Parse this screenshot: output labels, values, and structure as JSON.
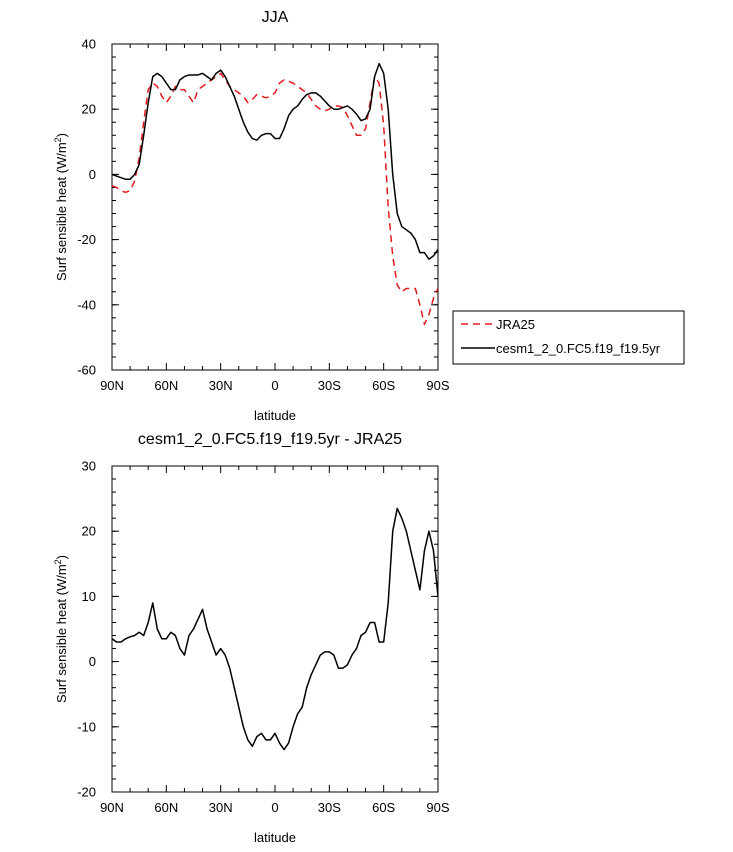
{
  "chart_data": [
    {
      "type": "line",
      "title": "JJA",
      "xlabel": "latitude",
      "ylabel": "Surf sensible heat (W/m²)",
      "ylabel_main": "Surf sensible heat (W/m",
      "ylabel_sup": "2",
      "ylabel_close": ")",
      "xlim": [
        90,
        -90
      ],
      "ylim": [
        -60,
        40
      ],
      "x_ticks": [
        90,
        60,
        30,
        0,
        -30,
        -60,
        -90
      ],
      "x_tick_labels": [
        "90N",
        "60N",
        "30N",
        "0",
        "30S",
        "60S",
        "90S"
      ],
      "y_ticks": [
        -60,
        -40,
        -20,
        0,
        20,
        40
      ],
      "y_tick_labels": [
        "-60",
        "-40",
        "-20",
        "0",
        "20",
        "40"
      ],
      "legend": {
        "position": "right",
        "entries": [
          "JRA25",
          "cesm1_2_0.FC5.f19_f19.5yr"
        ]
      },
      "series": [
        {
          "name": "JRA25",
          "color": "#e31a1c",
          "dash": "dashed",
          "x": [
            90,
            87.5,
            85,
            82.5,
            80,
            77.5,
            75,
            72.5,
            70,
            67.5,
            65,
            62.5,
            60,
            57.5,
            55,
            52.5,
            50,
            47.5,
            45,
            42.5,
            40,
            37.5,
            35,
            32.5,
            30,
            27.5,
            25,
            22.5,
            20,
            17.5,
            15,
            12.5,
            10,
            7.5,
            5,
            2.5,
            0,
            -2.5,
            -5,
            -7.5,
            -10,
            -12.5,
            -15,
            -17.5,
            -20,
            -22.5,
            -25,
            -27.5,
            -30,
            -32.5,
            -35,
            -37.5,
            -40,
            -42.5,
            -45,
            -47.5,
            -50,
            -52.5,
            -55,
            -57.5,
            -60,
            -62.5,
            -65,
            -67.5,
            -70,
            -72.5,
            -75,
            -77.5,
            -80,
            -82.5,
            -85,
            -87.5,
            -90
          ],
          "values": [
            -3.5,
            -4,
            -5,
            -5.5,
            -5,
            -2,
            5,
            16,
            26,
            28,
            27,
            24,
            22,
            24,
            27,
            26,
            26,
            24,
            22,
            26,
            27,
            28,
            29,
            30,
            31,
            29,
            27,
            26,
            25,
            24,
            22,
            23,
            24.5,
            24,
            23.5,
            24,
            25,
            28,
            29,
            28.5,
            28,
            27,
            26,
            25,
            23,
            21,
            20,
            19.5,
            20,
            21,
            21,
            20.5,
            18,
            15,
            12,
            12,
            14,
            22,
            30,
            28,
            15,
            -10,
            -25,
            -34,
            -36,
            -35,
            -35,
            -35,
            -40,
            -46,
            -43,
            -38,
            -35
          ]
        },
        {
          "name": "cesm1_2_0.FC5.f19_f19.5yr",
          "color": "#000000",
          "dash": "solid",
          "x": [
            90,
            87.5,
            85,
            82.5,
            80,
            77.5,
            75,
            72.5,
            70,
            67.5,
            65,
            62.5,
            60,
            57.5,
            55,
            52.5,
            50,
            47.5,
            45,
            42.5,
            40,
            37.5,
            35,
            32.5,
            30,
            27.5,
            25,
            22.5,
            20,
            17.5,
            15,
            12.5,
            10,
            7.5,
            5,
            2.5,
            0,
            -2.5,
            -5,
            -7.5,
            -10,
            -12.5,
            -15,
            -17.5,
            -20,
            -22.5,
            -25,
            -27.5,
            -30,
            -32.5,
            -35,
            -37.5,
            -40,
            -42.5,
            -45,
            -47.5,
            -50,
            -52.5,
            -55,
            -57.5,
            -60,
            -62.5,
            -65,
            -67.5,
            -70,
            -72.5,
            -75,
            -77.5,
            -80,
            -82.5,
            -85,
            -87.5,
            -90
          ],
          "values": [
            0,
            -0.5,
            -1,
            -1.5,
            -1.5,
            0,
            3,
            12,
            22,
            30,
            31,
            30,
            28,
            26,
            26,
            29,
            30,
            30.5,
            30.5,
            30.5,
            31,
            30,
            29,
            31,
            32,
            30,
            27,
            24,
            20,
            16,
            13,
            11,
            10.5,
            12,
            12.5,
            12.5,
            11,
            11,
            14,
            18,
            20,
            21,
            23,
            24.5,
            25,
            25,
            24,
            22.5,
            21,
            20,
            20,
            20.5,
            21,
            20,
            18.5,
            16.5,
            17,
            20,
            30,
            34,
            31,
            20,
            0,
            -12,
            -16,
            -17,
            -18,
            -20,
            -24,
            -24,
            -26,
            -25,
            -23
          ]
        }
      ]
    },
    {
      "type": "line",
      "title": "cesm1_2_0.FC5.f19_f19.5yr - JRA25",
      "xlabel": "latitude",
      "ylabel": "Surf sensible heat (W/m²)",
      "ylabel_main": "Surf sensible heat (W/m",
      "ylabel_sup": "2",
      "ylabel_close": ")",
      "xlim": [
        90,
        -90
      ],
      "ylim": [
        -20,
        30
      ],
      "x_ticks": [
        90,
        60,
        30,
        0,
        -30,
        -60,
        -90
      ],
      "x_tick_labels": [
        "90N",
        "60N",
        "30N",
        "0",
        "30S",
        "60S",
        "90S"
      ],
      "y_ticks": [
        -20,
        -10,
        0,
        10,
        20,
        30
      ],
      "y_tick_labels": [
        "-20",
        "-10",
        "0",
        "10",
        "20",
        "30"
      ],
      "series": [
        {
          "color": "#000000",
          "dash": "solid",
          "x": [
            90,
            87.5,
            85,
            82.5,
            80,
            77.5,
            75,
            72.5,
            70,
            67.5,
            65,
            62.5,
            60,
            57.5,
            55,
            52.5,
            50,
            47.5,
            45,
            42.5,
            40,
            37.5,
            35,
            32.5,
            30,
            27.5,
            25,
            22.5,
            20,
            17.5,
            15,
            12.5,
            10,
            7.5,
            5,
            2.5,
            0,
            -2.5,
            -5,
            -7.5,
            -10,
            -12.5,
            -15,
            -17.5,
            -20,
            -22.5,
            -25,
            -27.5,
            -30,
            -32.5,
            -35,
            -37.5,
            -40,
            -42.5,
            -45,
            -47.5,
            -50,
            -52.5,
            -55,
            -57.5,
            -60,
            -62.5,
            -65,
            -67.5,
            -70,
            -72.5,
            -75,
            -77.5,
            -80,
            -82.5,
            -85,
            -87.5,
            -90
          ],
          "values": [
            3.5,
            3,
            3,
            3.5,
            3.8,
            4,
            4.5,
            4,
            6,
            9,
            5,
            3.5,
            3.5,
            4.5,
            4,
            2,
            1,
            4,
            5,
            6.5,
            8,
            5,
            3,
            1,
            2,
            1,
            -1,
            -4,
            -7,
            -10,
            -12,
            -13,
            -11.5,
            -11,
            -12,
            -12,
            -11,
            -12.5,
            -13.5,
            -12.5,
            -10,
            -8,
            -7,
            -4,
            -2,
            -0.5,
            1,
            1.5,
            1.5,
            1,
            -1,
            -1,
            -0.5,
            1,
            2,
            4,
            4.5,
            6,
            6,
            3,
            3,
            9,
            20,
            23.5,
            22,
            20,
            17,
            14,
            11,
            17,
            20,
            17,
            10
          ]
        }
      ]
    }
  ]
}
